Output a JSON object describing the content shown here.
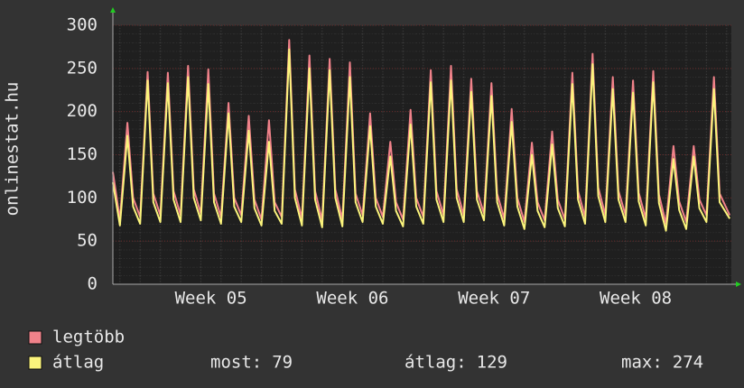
{
  "chart_data": {
    "type": "line",
    "y_label": "onlinestat.hu",
    "x": [
      0,
      0.35,
      0.72,
      1,
      1.35,
      1.72,
      2,
      2.35,
      2.72,
      3,
      3.35,
      3.72,
      4,
      4.35,
      4.72,
      5,
      5.35,
      5.72,
      6,
      6.35,
      6.72,
      7,
      7.35,
      7.72,
      8,
      8.35,
      8.72,
      9,
      9.35,
      9.72,
      10,
      10.35,
      10.72,
      11,
      11.35,
      11.72,
      12,
      12.35,
      12.72,
      13,
      13.35,
      13.72,
      14,
      14.35,
      14.72,
      15,
      15.35,
      15.72,
      16,
      16.35,
      16.72,
      17,
      17.35,
      17.72,
      18,
      18.35,
      18.72,
      19,
      19.35,
      19.72,
      20,
      20.35,
      20.72,
      21,
      21.35,
      21.72,
      22,
      22.35,
      22.72,
      23,
      23.35,
      23.72,
      24,
      24.35,
      24.72,
      25,
      25.35,
      25.72,
      26,
      26.35,
      26.72,
      27,
      27.35,
      27.72,
      28,
      28.35,
      28.72,
      29,
      29.35,
      29.72,
      30,
      30.5
    ],
    "series": [
      {
        "name": "legtöbb",
        "color": "#f0828a",
        "values": [
          130,
          75,
          187,
          100,
          78,
          246,
          105,
          80,
          245,
          108,
          80,
          253,
          110,
          82,
          249,
          105,
          78,
          210,
          100,
          80,
          195,
          98,
          75,
          190,
          95,
          78,
          283,
          110,
          76,
          265,
          108,
          74,
          261,
          110,
          75,
          257,
          105,
          80,
          198,
          100,
          78,
          165,
          95,
          75,
          202,
          100,
          78,
          248,
          108,
          80,
          253,
          110,
          80,
          238,
          108,
          82,
          233,
          105,
          76,
          203,
          100,
          72,
          164,
          95,
          74,
          177,
          98,
          75,
          245,
          108,
          78,
          267,
          112,
          80,
          240,
          108,
          80,
          236,
          106,
          76,
          247,
          104,
          70,
          160,
          96,
          72,
          160,
          98,
          80,
          240,
          105,
          80
        ]
      },
      {
        "name": "átlag",
        "color": "#fbf47c",
        "values": [
          118,
          68,
          172,
          90,
          70,
          236,
          95,
          72,
          233,
          98,
          72,
          240,
          100,
          74,
          232,
          95,
          70,
          198,
          90,
          72,
          178,
          88,
          68,
          165,
          85,
          70,
          272,
          100,
          68,
          250,
          98,
          66,
          248,
          100,
          67,
          240,
          95,
          72,
          183,
          90,
          70,
          148,
          85,
          67,
          185,
          90,
          70,
          234,
          98,
          72,
          236,
          100,
          72,
          223,
          98,
          74,
          218,
          95,
          68,
          188,
          90,
          64,
          150,
          85,
          66,
          162,
          88,
          67,
          232,
          98,
          70,
          255,
          102,
          72,
          226,
          98,
          72,
          222,
          96,
          68,
          234,
          94,
          62,
          145,
          86,
          64,
          148,
          88,
          72,
          226,
          95,
          76
        ]
      }
    ],
    "xlim": [
      0,
      30.58
    ],
    "xticks": [
      {
        "value": 4.85,
        "label": "Week 05"
      },
      {
        "value": 11.85,
        "label": "Week 06"
      },
      {
        "value": 18.85,
        "label": "Week 07"
      },
      {
        "value": 25.85,
        "label": "Week 08"
      }
    ],
    "ylim": [
      0,
      300
    ],
    "yticks": [
      0,
      50,
      100,
      150,
      200,
      250,
      300
    ],
    "grid": true,
    "stats": [
      {
        "label": "most:",
        "value": 79
      },
      {
        "label": "átlag:",
        "value": 129
      },
      {
        "label": "max:",
        "value": 274
      }
    ]
  }
}
